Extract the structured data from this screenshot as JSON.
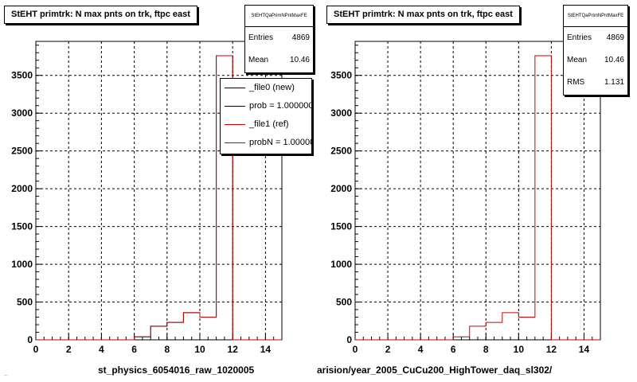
{
  "chart_data": [
    {
      "type": "histogram",
      "title": "StEHT primtrk: N max pnts on trk, ftpc east",
      "xlim": [
        0,
        15
      ],
      "ylim": [
        0,
        3950
      ],
      "xticks": [
        0,
        2,
        4,
        6,
        8,
        10,
        12,
        14
      ],
      "yticks": [
        0,
        500,
        1000,
        1500,
        2000,
        2500,
        3000,
        3500
      ],
      "grid": true,
      "bin_edges": [
        0,
        1,
        2,
        3,
        4,
        5,
        6,
        7,
        8,
        9,
        10,
        11,
        12,
        13,
        14,
        15
      ],
      "series": [
        {
          "name": "_file0 (new)",
          "color": "#000000",
          "values": [
            0,
            0,
            0,
            0,
            0,
            0,
            40,
            180,
            230,
            360,
            300,
            3760,
            0,
            0,
            0
          ]
        },
        {
          "name": "_file1 (ref)",
          "color": "#cc0000",
          "values": [
            0,
            0,
            0,
            0,
            0,
            0,
            40,
            180,
            230,
            360,
            300,
            3760,
            0,
            0,
            0
          ]
        }
      ],
      "stats": {
        "header": "StEHTQaPrimNPntMaxFE",
        "entries_label": "Entries",
        "entries": "4869",
        "mean_label": "Mean",
        "mean": "10.46"
      },
      "legend": [
        "_file0 (new)",
        "prob = 1.000000",
        "_file1 (ref)",
        "probN = 1.000000"
      ],
      "legend_placement": "top-right",
      "xlabel": "st_physics_6054016_raw_1020005",
      "footnote": "..."
    },
    {
      "type": "histogram",
      "title": "StEHT primtrk: N max pnts on trk, ftpc east",
      "xlim": [
        0,
        15
      ],
      "ylim": [
        0,
        3950
      ],
      "xticks": [
        0,
        2,
        4,
        6,
        8,
        10,
        12,
        14
      ],
      "yticks": [
        0,
        500,
        1000,
        1500,
        2000,
        2500,
        3000,
        3500
      ],
      "grid": true,
      "bin_edges": [
        0,
        1,
        2,
        3,
        4,
        5,
        6,
        7,
        8,
        9,
        10,
        11,
        12,
        13,
        14,
        15
      ],
      "series": [
        {
          "color": "#cc0000",
          "values": [
            0,
            0,
            0,
            0,
            0,
            0,
            40,
            180,
            230,
            360,
            300,
            3760,
            0,
            0,
            0
          ]
        }
      ],
      "stats": {
        "header": "StEHTQaPrimNPntMaxFE",
        "entries_label": "Entries",
        "entries": "4869",
        "mean_label": "Mean",
        "mean": "10.46",
        "rms_label": "RMS",
        "rms": "1.131"
      },
      "xlabel": "arision/year_2005_CuCu200_HighTower_daq_sl302/"
    }
  ]
}
